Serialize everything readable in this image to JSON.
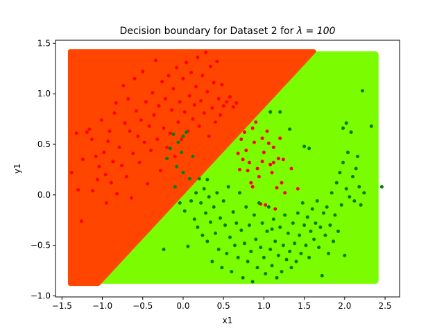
{
  "chart_data": {
    "type": "scatter",
    "title_prefix": "Decision boundary for Dataset 2 for ",
    "title_math": "λ = 100",
    "xlabel": "x1",
    "ylabel": "y1",
    "xlim": [
      -1.58,
      2.68
    ],
    "ylim": [
      -1.01,
      1.53
    ],
    "xticks": [
      -1.5,
      -1.0,
      -0.5,
      0.0,
      0.5,
      1.0,
      1.5,
      2.0,
      2.5
    ],
    "xtick_labels": [
      "−1.5",
      "−1.0",
      "−0.5",
      "0.0",
      "0.5",
      "1.0",
      "1.5",
      "2.0",
      "2.5"
    ],
    "yticks": [
      -1.0,
      -0.5,
      0.0,
      0.5,
      1.0,
      1.5
    ],
    "ytick_labels": [
      "−1.0",
      "−0.5",
      "0.0",
      "0.5",
      "1.0",
      "1.5"
    ],
    "grid": false,
    "decision_regions": {
      "x_range": [
        -1.4,
        2.42
      ],
      "y_range": [
        -0.88,
        1.42
      ],
      "boundary": [
        [
          -1.05,
          -0.88
        ],
        [
          1.62,
          1.42
        ]
      ],
      "class0_color": "#ff4500",
      "class1_color": "#7cfc00"
    },
    "series": [
      {
        "color": "#ff0000",
        "points": [
          [
            -1.38,
            0.22
          ],
          [
            -1.32,
            0.61
          ],
          [
            -1.3,
            0.05
          ],
          [
            -1.26,
            -0.26
          ],
          [
            -1.24,
            0.35
          ],
          [
            -1.19,
            0.62
          ],
          [
            -1.16,
            0.65
          ],
          [
            -1.13,
            0.55
          ],
          [
            -1.12,
            0.04
          ],
          [
            -1.08,
            0.38
          ],
          [
            -1.06,
            0.15
          ],
          [
            -1.04,
            0.28
          ],
          [
            -1.01,
            0.74
          ],
          [
            -0.98,
            0.42
          ],
          [
            -0.96,
            0.2
          ],
          [
            -0.95,
            -0.08
          ],
          [
            -0.93,
            0.53
          ],
          [
            -0.91,
            0.63
          ],
          [
            -0.89,
            0.12
          ],
          [
            -0.87,
            0.33
          ],
          [
            -0.85,
            0.81
          ],
          [
            -0.83,
            0.91
          ],
          [
            -0.82,
            0.01
          ],
          [
            -0.79,
            0.47
          ],
          [
            -0.76,
            0.29
          ],
          [
            -0.74,
            1.08
          ],
          [
            -0.72,
            0.71
          ],
          [
            -0.7,
            0.18
          ],
          [
            -0.68,
            0.95
          ],
          [
            -0.66,
            0.63
          ],
          [
            -0.64,
            -0.03
          ],
          [
            -0.62,
            0.41
          ],
          [
            -0.6,
            1.15
          ],
          [
            -0.58,
            0.83
          ],
          [
            -0.56,
            0.58
          ],
          [
            -0.54,
            0.32
          ],
          [
            -0.52,
            0.74
          ],
          [
            -0.5,
            1.22
          ],
          [
            -0.48,
            0.52
          ],
          [
            -0.46,
            0.92
          ],
          [
            -0.44,
            0.11
          ],
          [
            -0.42,
            0.68
          ],
          [
            -0.4,
            0.44
          ],
          [
            -0.38,
            1.01
          ],
          [
            -0.36,
            0.79
          ],
          [
            -0.34,
            1.33
          ],
          [
            -0.32,
            0.55
          ],
          [
            -0.3,
            0.88
          ],
          [
            -0.28,
            0.24
          ],
          [
            -0.26,
            1.12
          ],
          [
            -0.24,
            0.66
          ],
          [
            -0.22,
            0.95
          ],
          [
            -0.2,
            0.47
          ],
          [
            -0.18,
            1.18
          ],
          [
            -0.16,
            0.61
          ],
          [
            -0.14,
            0.84
          ],
          [
            -0.12,
            1.05
          ],
          [
            -0.1,
            0.38
          ],
          [
            -0.08,
            1.26
          ],
          [
            -0.06,
            0.72
          ],
          [
            -0.04,
            0.92
          ],
          [
            -0.02,
            0.55
          ],
          [
            0.0,
            1.15
          ],
          [
            0.02,
            0.82
          ],
          [
            0.04,
            1.31
          ],
          [
            0.06,
            0.63
          ],
          [
            0.08,
            0.98
          ],
          [
            0.1,
            1.21
          ],
          [
            0.12,
            0.75
          ],
          [
            0.14,
            0.89
          ],
          [
            0.16,
            1.07
          ],
          [
            0.18,
            1.36
          ],
          [
            0.2,
            0.68
          ],
          [
            0.22,
            0.93
          ],
          [
            0.24,
            1.18
          ],
          [
            0.26,
            0.81
          ],
          [
            0.28,
            1.41
          ],
          [
            0.3,
            1.02
          ],
          [
            0.32,
            0.58
          ],
          [
            0.34,
            1.27
          ],
          [
            0.36,
            0.86
          ],
          [
            0.38,
            1.11
          ],
          [
            0.4,
            0.72
          ],
          [
            0.42,
            1.32
          ],
          [
            0.44,
            0.95
          ],
          [
            0.46,
            0.79
          ],
          [
            0.48,
            1.09
          ],
          [
            0.5,
            0.88
          ],
          [
            0.54,
            0.92
          ],
          [
            0.58,
            0.97
          ],
          [
            0.62,
            0.87
          ],
          [
            0.66,
            0.91
          ],
          [
            0.68,
            0.41
          ],
          [
            0.7,
            0.25
          ],
          [
            0.72,
            0.55
          ],
          [
            0.74,
            0.35
          ],
          [
            0.76,
            0.62
          ],
          [
            0.78,
            0.44
          ],
          [
            0.8,
            0.24
          ],
          [
            0.82,
            0.32
          ],
          [
            0.84,
            0.12
          ],
          [
            0.86,
            0.08
          ],
          [
            0.88,
            0.52
          ],
          [
            0.9,
            0.72
          ],
          [
            0.92,
            0.26
          ],
          [
            0.94,
            0.18
          ],
          [
            0.96,
            -0.09
          ],
          [
            0.98,
            0.33
          ],
          [
            1.0,
            0.42
          ],
          [
            1.02,
            -0.1
          ],
          [
            1.04,
            0.63
          ],
          [
            1.06,
            0.51
          ],
          [
            1.08,
            0.3
          ],
          [
            1.1,
            0.22
          ],
          [
            1.12,
            0.47
          ],
          [
            1.14,
            -0.14
          ],
          [
            1.16,
            0.07
          ],
          [
            1.18,
            0.36
          ],
          [
            1.2,
            0.56
          ],
          [
            1.22,
            0.12
          ],
          [
            1.24,
            0.35
          ],
          [
            1.26,
            0.02
          ],
          [
            1.34,
            0.26
          ],
          [
            1.42,
            0.06
          ],
          [
            1.12,
            0.32
          ],
          [
            0.98,
            0.56
          ],
          [
            0.86,
            0.66
          ]
        ]
      },
      {
        "color": "#008000",
        "points": [
          [
            -0.24,
            -0.54
          ],
          [
            -0.2,
            0.36
          ],
          [
            -0.16,
            0.46
          ],
          [
            -0.12,
            0.6
          ],
          [
            -0.1,
            0.08
          ],
          [
            -0.08,
            0.28
          ],
          [
            -0.06,
            0.52
          ],
          [
            -0.04,
            -0.08
          ],
          [
            -0.02,
            0.42
          ],
          [
            0.0,
            0.22
          ],
          [
            0.02,
            -0.16
          ],
          [
            0.04,
            0.62
          ],
          [
            0.06,
            -0.51
          ],
          [
            0.08,
            0.16
          ],
          [
            0.1,
            -0.06
          ],
          [
            0.12,
            0.38
          ],
          [
            0.14,
            -0.24
          ],
          [
            0.16,
            0.02
          ],
          [
            0.18,
            -0.32
          ],
          [
            0.2,
            0.16
          ],
          [
            0.22,
            -0.08
          ],
          [
            0.24,
            -0.4
          ],
          [
            0.26,
            0.06
          ],
          [
            0.28,
            -0.18
          ],
          [
            0.3,
            -0.46
          ],
          [
            0.32,
            -0.02
          ],
          [
            0.34,
            -0.27
          ],
          [
            0.36,
            -0.66
          ],
          [
            0.38,
            -0.12
          ],
          [
            0.4,
            -0.38
          ],
          [
            0.42,
            0.02
          ],
          [
            0.44,
            -0.54
          ],
          [
            0.46,
            -0.23
          ],
          [
            0.48,
            -0.72
          ],
          [
            0.5,
            -0.06
          ],
          [
            0.52,
            -0.3
          ],
          [
            0.54,
            -0.58
          ],
          [
            0.56,
            0.08
          ],
          [
            0.58,
            -0.42
          ],
          [
            0.6,
            -0.76
          ],
          [
            0.62,
            -0.17
          ],
          [
            0.64,
            -0.5
          ],
          [
            0.66,
            -0.28
          ],
          [
            0.68,
            -0.62
          ],
          [
            0.7,
            0.02
          ],
          [
            0.72,
            -0.35
          ],
          [
            0.74,
            -0.82
          ],
          [
            0.76,
            -0.48
          ],
          [
            0.78,
            -0.12
          ],
          [
            0.8,
            -0.66
          ],
          [
            0.82,
            -0.3
          ],
          [
            0.84,
            -0.56
          ],
          [
            0.86,
            -0.86
          ],
          [
            0.88,
            -0.2
          ],
          [
            0.9,
            -0.44
          ],
          [
            0.92,
            -0.72
          ],
          [
            0.94,
            -0.08
          ],
          [
            0.96,
            -0.52
          ],
          [
            0.98,
            -0.28
          ],
          [
            1.0,
            -0.62
          ],
          [
            1.02,
            -0.78
          ],
          [
            1.04,
            -0.36
          ],
          [
            1.06,
            -0.12
          ],
          [
            1.08,
            -0.54
          ],
          [
            1.1,
            -0.7
          ],
          [
            1.12,
            -0.24
          ],
          [
            1.14,
            -0.46
          ],
          [
            1.16,
            -0.82
          ],
          [
            1.18,
            -0.6
          ],
          [
            1.2,
            -0.32
          ],
          [
            1.22,
            -0.76
          ],
          [
            1.24,
            -0.5
          ],
          [
            1.26,
            -0.2
          ],
          [
            1.28,
            -0.64
          ],
          [
            1.3,
            -0.38
          ],
          [
            1.32,
            -0.56
          ],
          [
            1.34,
            -0.72
          ],
          [
            1.36,
            -0.28
          ],
          [
            1.38,
            -0.48
          ],
          [
            1.4,
            -0.66
          ],
          [
            1.42,
            -0.18
          ],
          [
            1.44,
            -0.4
          ],
          [
            1.46,
            -0.58
          ],
          [
            1.48,
            -0.08
          ],
          [
            1.5,
            -0.3
          ],
          [
            1.52,
            -0.5
          ],
          [
            1.54,
            -0.22
          ],
          [
            1.56,
            -0.62
          ],
          [
            1.58,
            -0.36
          ],
          [
            1.6,
            -0.14
          ],
          [
            1.62,
            -0.44
          ],
          [
            1.64,
            -0.28
          ],
          [
            1.66,
            -0.06
          ],
          [
            1.68,
            -0.52
          ],
          [
            1.7,
            -0.32
          ],
          [
            1.72,
            -0.8
          ],
          [
            1.74,
            -0.18
          ],
          [
            1.76,
            -0.4
          ],
          [
            1.78,
            -0.12
          ],
          [
            1.8,
            -0.58
          ],
          [
            1.82,
            -0.3
          ],
          [
            1.84,
            0.02
          ],
          [
            1.86,
            -0.46
          ],
          [
            1.88,
            -0.2
          ],
          [
            1.9,
            0.12
          ],
          [
            1.92,
            -0.36
          ],
          [
            1.94,
            0.22
          ],
          [
            1.96,
            -0.1
          ],
          [
            1.98,
            0.32
          ],
          [
            2.0,
            -0.6
          ],
          [
            2.02,
            0.06
          ],
          [
            2.04,
            0.42
          ],
          [
            2.06,
            -0.02
          ],
          [
            2.08,
            0.62
          ],
          [
            2.1,
            0.18
          ],
          [
            2.12,
            -0.06
          ],
          [
            2.14,
            0.26
          ],
          [
            2.16,
            0.38
          ],
          [
            2.18,
            0.08
          ],
          [
            2.2,
            -0.1
          ],
          [
            2.22,
            1.03
          ],
          [
            2.24,
            0.02
          ],
          [
            2.33,
            0.68
          ],
          [
            2.46,
            0.08
          ],
          [
            1.5,
            0.48
          ],
          [
            1.56,
            0.46
          ],
          [
            1.98,
            0.66
          ],
          [
            2.02,
            0.71
          ],
          [
            1.2,
            0.82
          ],
          [
            1.08,
            0.82
          ],
          [
            1.32,
            0.65
          ],
          [
            1.1,
            -0.34
          ],
          [
            0.3,
            0.15
          ],
          [
            0.0,
            0.58
          ]
        ]
      }
    ]
  }
}
